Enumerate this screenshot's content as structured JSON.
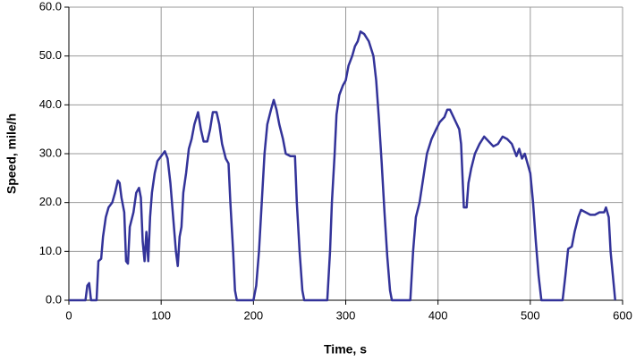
{
  "chart_data": {
    "type": "line",
    "xlabel": "Time, s",
    "ylabel": "Speed, mile/h",
    "x": [
      0,
      18,
      20,
      22,
      24,
      30,
      32,
      35,
      37,
      40,
      43,
      47,
      50,
      53,
      55,
      57,
      60,
      62,
      64,
      66,
      70,
      73,
      76,
      78,
      80,
      82,
      84,
      86,
      88,
      90,
      93,
      96,
      100,
      104,
      107,
      110,
      113,
      116,
      118,
      120,
      122,
      124,
      127,
      130,
      133,
      136,
      140,
      143,
      146,
      150,
      153,
      156,
      160,
      163,
      166,
      170,
      173,
      175,
      178,
      180,
      182,
      200,
      203,
      206,
      209,
      212,
      215,
      219,
      222,
      225,
      228,
      232,
      235,
      240,
      245,
      247,
      250,
      253,
      255,
      280,
      283,
      285,
      288,
      290,
      293,
      297,
      300,
      303,
      307,
      310,
      313,
      316,
      320,
      325,
      330,
      333,
      336,
      339,
      342,
      345,
      348,
      350,
      370,
      373,
      376,
      380,
      384,
      388,
      393,
      398,
      402,
      407,
      410,
      413,
      418,
      423,
      425,
      428,
      431,
      433,
      436,
      440,
      445,
      450,
      455,
      460,
      465,
      470,
      475,
      480,
      485,
      488,
      491,
      494,
      497,
      500,
      503,
      506,
      509,
      512,
      535,
      538,
      541,
      545,
      548,
      552,
      555,
      560,
      565,
      570,
      575,
      580,
      582,
      585,
      587,
      590,
      592
    ],
    "series": [
      {
        "name": "Speed",
        "color": "#333399",
        "values": [
          0,
          0,
          3,
          3.5,
          0,
          0,
          8,
          8.5,
          13,
          17,
          19,
          20,
          22,
          24.5,
          24,
          21,
          18,
          8,
          7.5,
          15,
          18,
          22,
          23,
          21,
          12,
          8,
          14,
          8,
          17,
          22,
          26,
          28.5,
          29.5,
          30.5,
          29,
          24,
          17,
          10,
          7,
          13,
          15,
          22,
          26,
          31,
          33,
          36,
          38.5,
          35,
          32.5,
          32.5,
          35,
          38.5,
          38.5,
          36,
          32,
          29,
          28,
          20,
          10,
          2,
          0,
          0,
          3,
          10,
          20,
          30,
          36,
          39,
          41,
          39,
          36,
          33,
          30,
          29.5,
          29.5,
          20,
          10,
          2,
          0,
          0,
          10,
          20,
          30,
          38,
          42,
          44,
          45,
          48,
          50,
          52,
          53,
          55,
          54.5,
          53,
          50,
          45,
          37,
          28,
          18,
          9,
          2,
          0,
          0,
          10,
          17,
          20,
          25,
          30,
          33,
          35,
          36.5,
          37.5,
          39,
          39,
          37,
          35,
          32,
          19,
          19,
          24,
          27,
          30,
          32,
          33.5,
          32.5,
          31.5,
          32,
          33.5,
          33,
          32,
          29.5,
          31,
          29,
          30,
          28,
          26,
          20,
          12,
          5,
          0,
          0,
          5,
          10.5,
          11,
          14,
          17,
          18.5,
          18,
          17.5,
          17.5,
          18,
          18,
          19,
          17,
          10,
          4,
          0
        ]
      }
    ],
    "xlim": [
      0,
      600
    ],
    "xticks": [
      0,
      100,
      200,
      300,
      400,
      500,
      600
    ],
    "ylim": [
      0,
      60
    ],
    "yticks": [
      {
        "value": 0,
        "label": "0.0"
      },
      {
        "value": 10,
        "label": "10.0"
      },
      {
        "value": 20,
        "label": "20.0"
      },
      {
        "value": 30,
        "label": "30.0"
      },
      {
        "value": 40,
        "label": "40.0"
      },
      {
        "value": 50,
        "label": "50.0"
      },
      {
        "value": 60,
        "label": "60.0"
      }
    ],
    "grid": true
  }
}
